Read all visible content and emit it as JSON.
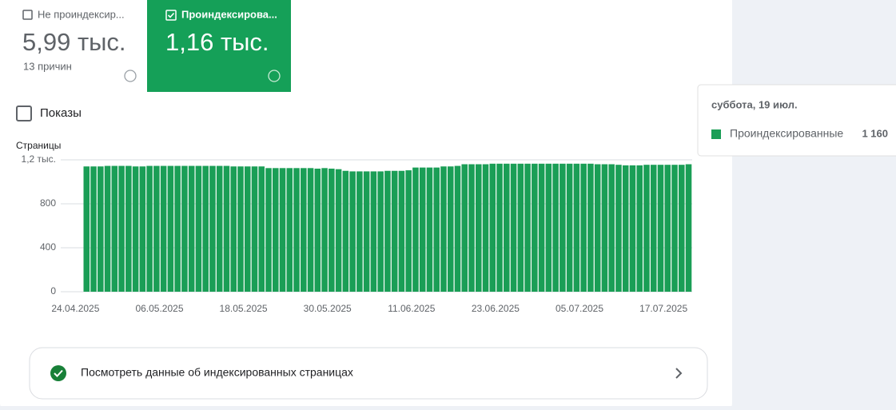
{
  "cards": [
    {
      "label": "Не проиндексир...",
      "value": "5,99 тыс.",
      "note": "13 причин"
    },
    {
      "label": "Проиндексирова...",
      "value": "1,16 тыс."
    }
  ],
  "impressions_label": "Показы",
  "chart_data": {
    "type": "bar",
    "y_label": "Страницы",
    "categories": [
      "24.04.2025",
      null,
      null,
      null,
      null,
      null,
      null,
      null,
      null,
      null,
      null,
      null,
      "06.05.2025",
      null,
      null,
      null,
      null,
      null,
      null,
      null,
      null,
      null,
      null,
      null,
      "18.05.2025",
      null,
      null,
      null,
      null,
      null,
      null,
      null,
      null,
      null,
      null,
      null,
      "30.05.2025",
      null,
      null,
      null,
      null,
      null,
      null,
      null,
      null,
      null,
      null,
      null,
      "11.06.2025",
      null,
      null,
      null,
      null,
      null,
      null,
      null,
      null,
      null,
      null,
      null,
      "23.06.2025",
      null,
      null,
      null,
      null,
      null,
      null,
      null,
      null,
      null,
      null,
      null,
      "05.07.2025",
      null,
      null,
      null,
      null,
      null,
      null,
      null,
      null,
      null,
      null,
      null,
      "17.07.2025",
      null,
      null
    ],
    "series": [
      {
        "name": "Проиндексированные",
        "color": "#1a9e56",
        "values": [
          1140,
          1140,
          1140,
          1145,
          1145,
          1145,
          1145,
          1140,
          1140,
          1145,
          1145,
          1145,
          1145,
          1145,
          1145,
          1145,
          1145,
          1145,
          1145,
          1145,
          1145,
          1140,
          1140,
          1140,
          1140,
          1140,
          1125,
          1125,
          1125,
          1125,
          1125,
          1125,
          1125,
          1120,
          1125,
          1120,
          1115,
          1100,
          1095,
          1095,
          1095,
          1095,
          1095,
          1100,
          1100,
          1100,
          1105,
          1130,
          1130,
          1130,
          1130,
          1140,
          1140,
          1145,
          1160,
          1160,
          1160,
          1160,
          1165,
          1165,
          1165,
          1165,
          1165,
          1165,
          1165,
          1165,
          1165,
          1165,
          1165,
          1165,
          1165,
          1165,
          1165,
          1160,
          1160,
          1160,
          1155,
          1150,
          1150,
          1150,
          1155,
          1155,
          1155,
          1155,
          1155,
          1155,
          1160
        ]
      }
    ],
    "ylim": [
      0,
      1200
    ],
    "yticks": [
      0,
      400,
      800,
      {
        "value": 1200,
        "label": "1,2 тыс."
      }
    ],
    "grid": true,
    "tooltip": {
      "title": "суббота, 19 июл.",
      "value_label": "1 160"
    }
  },
  "link": "Посмотреть данные об индексированных страницах"
}
